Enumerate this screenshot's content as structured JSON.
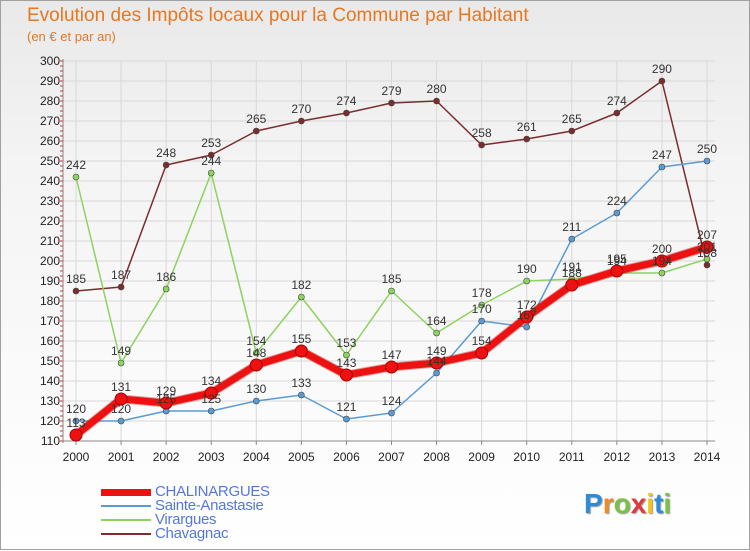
{
  "title": "Evolution des Impôts locaux pour la Commune par Habitant",
  "subtitle": "(en € et par an)",
  "logo": {
    "text": "Proxiti",
    "letter_colors": [
      "#2e8bd6",
      "#f08a24",
      "#7cc242",
      "#e03a3e",
      "#f0c419",
      "#2e8bd6",
      "#7cc242"
    ]
  },
  "chart_data": {
    "type": "line",
    "x": [
      "2000",
      "2001",
      "2002",
      "2003",
      "2004",
      "2005",
      "2006",
      "2007",
      "2008",
      "2009",
      "2010",
      "2011",
      "2012",
      "2013",
      "2014"
    ],
    "ylim": [
      110,
      300
    ],
    "yticks": [
      110,
      120,
      130,
      140,
      150,
      160,
      170,
      180,
      190,
      200,
      210,
      220,
      230,
      240,
      250,
      260,
      270,
      280,
      290,
      300
    ],
    "grid": true,
    "legend_position": "bottom-left",
    "series": [
      {
        "name": "CHALINARGUES",
        "color": "#ee1111",
        "values": [
          113,
          131,
          129,
          134,
          148,
          155,
          143,
          147,
          149,
          154,
          172,
          188,
          195,
          200,
          207
        ],
        "labels": [
          "113",
          "131",
          "129",
          "134",
          "148",
          "155",
          "143",
          "147",
          "149",
          "154",
          "172",
          "188",
          "195",
          "200",
          "207"
        ]
      },
      {
        "name": "Sainte-Anastasie",
        "color": "#5b9bd5",
        "values": [
          120,
          120,
          125,
          125,
          130,
          133,
          121,
          124,
          144,
          170,
          167,
          211,
          224,
          247,
          250
        ],
        "labels": [
          "120",
          "120",
          "125",
          "125",
          "130",
          "133",
          "121",
          "124",
          "144",
          "170",
          "167",
          "211",
          "224",
          "247",
          "250"
        ]
      },
      {
        "name": "Virargues",
        "color": "#8dd35f",
        "values": [
          242,
          149,
          186,
          244,
          154,
          182,
          153,
          185,
          164,
          178,
          190,
          191,
          194,
          194,
          201
        ],
        "labels": [
          "242",
          "149",
          "186",
          "244",
          "154",
          "182",
          "153",
          "185",
          "164",
          "178",
          "190",
          "191",
          "194",
          "194",
          "201"
        ]
      },
      {
        "name": "Chavagnac",
        "color": "#7b2c2c",
        "values": [
          185,
          187,
          248,
          253,
          265,
          270,
          274,
          279,
          280,
          258,
          261,
          265,
          274,
          290,
          198
        ],
        "labels": [
          "185",
          "187",
          "248",
          "253",
          "265",
          "270",
          "274",
          "279",
          "280",
          "258",
          "261",
          "265",
          "274",
          "290",
          "198"
        ]
      }
    ]
  }
}
